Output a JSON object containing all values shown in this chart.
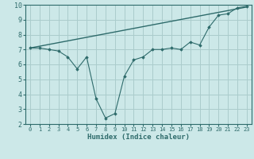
{
  "xlabel": "Humidex (Indice chaleur)",
  "ylabel": "",
  "xlim": [
    -0.5,
    23.5
  ],
  "ylim": [
    2,
    10
  ],
  "xticks": [
    0,
    1,
    2,
    3,
    4,
    5,
    6,
    7,
    8,
    9,
    10,
    11,
    12,
    13,
    14,
    15,
    16,
    17,
    18,
    19,
    20,
    21,
    22,
    23
  ],
  "yticks": [
    2,
    3,
    4,
    5,
    6,
    7,
    8,
    9,
    10
  ],
  "line_color": "#2e6b6b",
  "bg_color": "#cce8e8",
  "grid_color": "#aacccc",
  "zigzag_x": [
    0,
    1,
    2,
    3,
    4,
    5,
    6,
    7,
    8,
    9,
    10,
    11,
    12,
    13,
    14,
    15,
    16,
    17,
    18,
    19,
    20,
    21,
    22,
    23
  ],
  "zigzag_y": [
    7.1,
    7.1,
    7.0,
    6.9,
    6.5,
    5.7,
    6.5,
    3.7,
    2.4,
    2.7,
    5.2,
    6.3,
    6.5,
    7.0,
    7.0,
    7.1,
    7.0,
    7.5,
    7.3,
    8.5,
    9.3,
    9.4,
    9.8,
    9.9
  ],
  "trend_x": [
    0,
    23
  ],
  "trend_y": [
    7.1,
    9.85
  ]
}
